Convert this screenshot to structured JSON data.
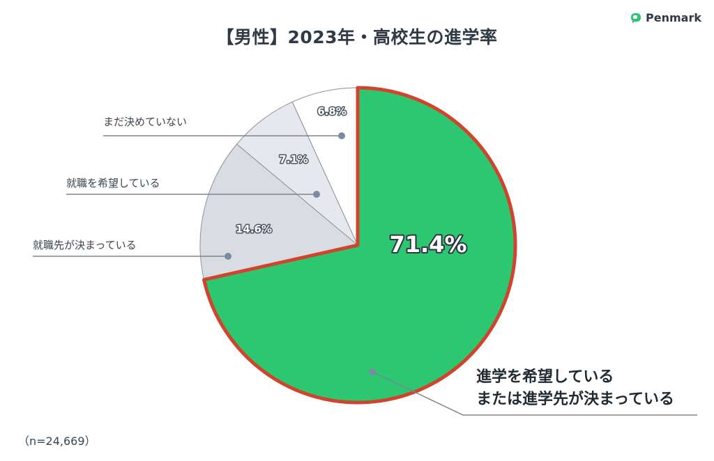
{
  "title": "【男性】2023年・高校生の進学率",
  "brand": {
    "name": "Penmark",
    "icon": "penmark-logo-icon",
    "icon_color": "#2ec771"
  },
  "note": "（n=24,669）",
  "chart_data": {
    "type": "pie",
    "title": "【男性】2023年・高校生の進学率",
    "start": "12 o'clock, clockwise",
    "slices": [
      {
        "label_lines": [
          "進学を希望している",
          "または進学先が決まっている"
        ],
        "value": 71.4,
        "value_label": "71.4%",
        "color": "#2ec771",
        "outline": "#d0442e"
      },
      {
        "label_lines": [
          "就職先が決まっている"
        ],
        "value": 14.6,
        "value_label": "14.6%",
        "color": "#dadce3"
      },
      {
        "label_lines": [
          "就職を希望している"
        ],
        "value": 7.1,
        "value_label": "7.1%",
        "color": "#e6e8ed"
      },
      {
        "label_lines": [
          "まだ決めていない"
        ],
        "value": 6.8,
        "value_label": "6.8%",
        "color": "#ffffff"
      }
    ],
    "colors": {
      "slice_border": "#8a929c",
      "leader_line": "#7a8490",
      "leader_dot": "#7a8ba2"
    }
  }
}
